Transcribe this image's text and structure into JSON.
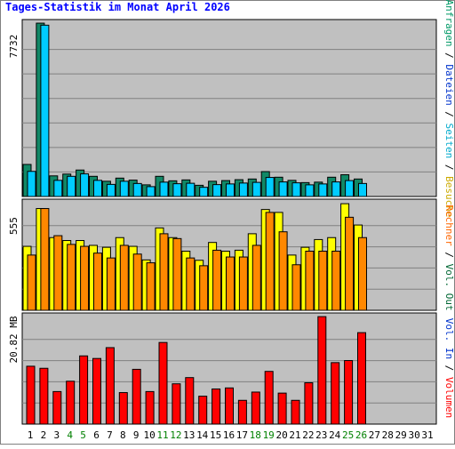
{
  "title": "Tages-Statistik im Monat April 2026",
  "legend": {
    "top": [
      {
        "text": "Anfragen",
        "color": "#009966"
      },
      {
        "text": " / ",
        "color": "#000000"
      },
      {
        "text": "Dateien",
        "color": "#0033cc"
      },
      {
        "text": " / ",
        "color": "#000000"
      },
      {
        "text": "Seiten",
        "color": "#00aacc"
      },
      {
        "text": " / ",
        "color": "#000000"
      },
      {
        "text": "Besuche",
        "color": "#ccaa00"
      }
    ],
    "mid": [
      {
        "text": "Rechner",
        "color": "#ff6600"
      },
      {
        "text": " / ",
        "color": "#000000"
      },
      {
        "text": "Vol. Out",
        "color": "#006633"
      }
    ],
    "bottom": [
      {
        "text": "Vol. In",
        "color": "#0033cc"
      },
      {
        "text": " / ",
        "color": "#000000"
      },
      {
        "text": "Volumen",
        "color": "#ff0000"
      }
    ]
  },
  "colors": {
    "anfragen": "#118866",
    "dateien": "#1177dd",
    "seiten": "#00ccff",
    "besuche": "#ffff00",
    "rechner": "#ff8800",
    "volumen": "#ff0000",
    "panel_bg": "#c0c0c0",
    "weekend_label": "#008000"
  },
  "chart_data": [
    {
      "type": "bar",
      "panel": "top",
      "ymax_label": "7732",
      "ylim": [
        0,
        7732
      ],
      "categories": [
        "1",
        "2",
        "3",
        "4",
        "5",
        "6",
        "7",
        "8",
        "9",
        "10",
        "11",
        "12",
        "13",
        "14",
        "15",
        "16",
        "17",
        "18",
        "19",
        "20",
        "21",
        "22",
        "23",
        "24",
        "25",
        "26",
        "27",
        "28",
        "29",
        "30",
        "31"
      ],
      "weekend": [
        "4",
        "5",
        "11",
        "12",
        "18",
        "19",
        "25",
        "26"
      ],
      "series": [
        {
          "name": "Anfragen",
          "values": [
            1430,
            7730,
            920,
            1000,
            1180,
            900,
            680,
            820,
            730,
            520,
            900,
            700,
            740,
            500,
            680,
            710,
            750,
            780,
            1110,
            860,
            720,
            620,
            640,
            860,
            970,
            780,
            0,
            0,
            0,
            0,
            0
          ]
        },
        {
          "name": "Seiten",
          "values": [
            1120,
            7640,
            720,
            900,
            1010,
            720,
            540,
            680,
            580,
            440,
            640,
            570,
            590,
            410,
            530,
            560,
            600,
            630,
            850,
            650,
            610,
            520,
            560,
            650,
            710,
            580,
            0,
            0,
            0,
            0,
            0
          ]
        }
      ]
    },
    {
      "type": "bar",
      "panel": "middle",
      "ymax_label": "555",
      "ylim": [
        0,
        555
      ],
      "categories": [
        "1",
        "2",
        "3",
        "4",
        "5",
        "6",
        "7",
        "8",
        "9",
        "10",
        "11",
        "12",
        "13",
        "14",
        "15",
        "16",
        "17",
        "18",
        "19",
        "20",
        "21",
        "22",
        "23",
        "24",
        "25",
        "26",
        "27",
        "28",
        "29",
        "30",
        "31"
      ],
      "series": [
        {
          "name": "Besuche",
          "values": [
            330,
            525,
            375,
            360,
            360,
            335,
            325,
            375,
            330,
            260,
            425,
            375,
            305,
            258,
            350,
            305,
            310,
            395,
            520,
            505,
            285,
            325,
            365,
            375,
            550,
            440,
            0,
            0,
            0,
            0,
            0
          ]
        },
        {
          "name": "Rechner",
          "values": [
            285,
            525,
            385,
            340,
            330,
            295,
            270,
            335,
            290,
            245,
            395,
            370,
            270,
            230,
            310,
            275,
            275,
            335,
            505,
            405,
            235,
            305,
            305,
            305,
            480,
            375,
            0,
            0,
            0,
            0,
            0
          ]
        }
      ]
    },
    {
      "type": "bar",
      "panel": "bottom",
      "ymax_label": "20.82 MB",
      "ylim": [
        0,
        20.82
      ],
      "categories": [
        "1",
        "2",
        "3",
        "4",
        "5",
        "6",
        "7",
        "8",
        "9",
        "10",
        "11",
        "12",
        "13",
        "14",
        "15",
        "16",
        "17",
        "18",
        "19",
        "20",
        "21",
        "22",
        "23",
        "24",
        "25",
        "26",
        "27",
        "28",
        "29",
        "30",
        "31"
      ],
      "series": [
        {
          "name": "Volumen",
          "values": [
            11.2,
            10.8,
            6.3,
            8.3,
            13.2,
            12.7,
            14.8,
            6.1,
            10.6,
            6.3,
            15.8,
            7.8,
            9.0,
            5.4,
            6.8,
            7.0,
            4.6,
            6.2,
            10.2,
            6.0,
            4.6,
            8.0,
            20.8,
            11.9,
            12.3,
            17.7,
            0,
            0,
            0,
            0,
            0
          ]
        }
      ]
    }
  ]
}
